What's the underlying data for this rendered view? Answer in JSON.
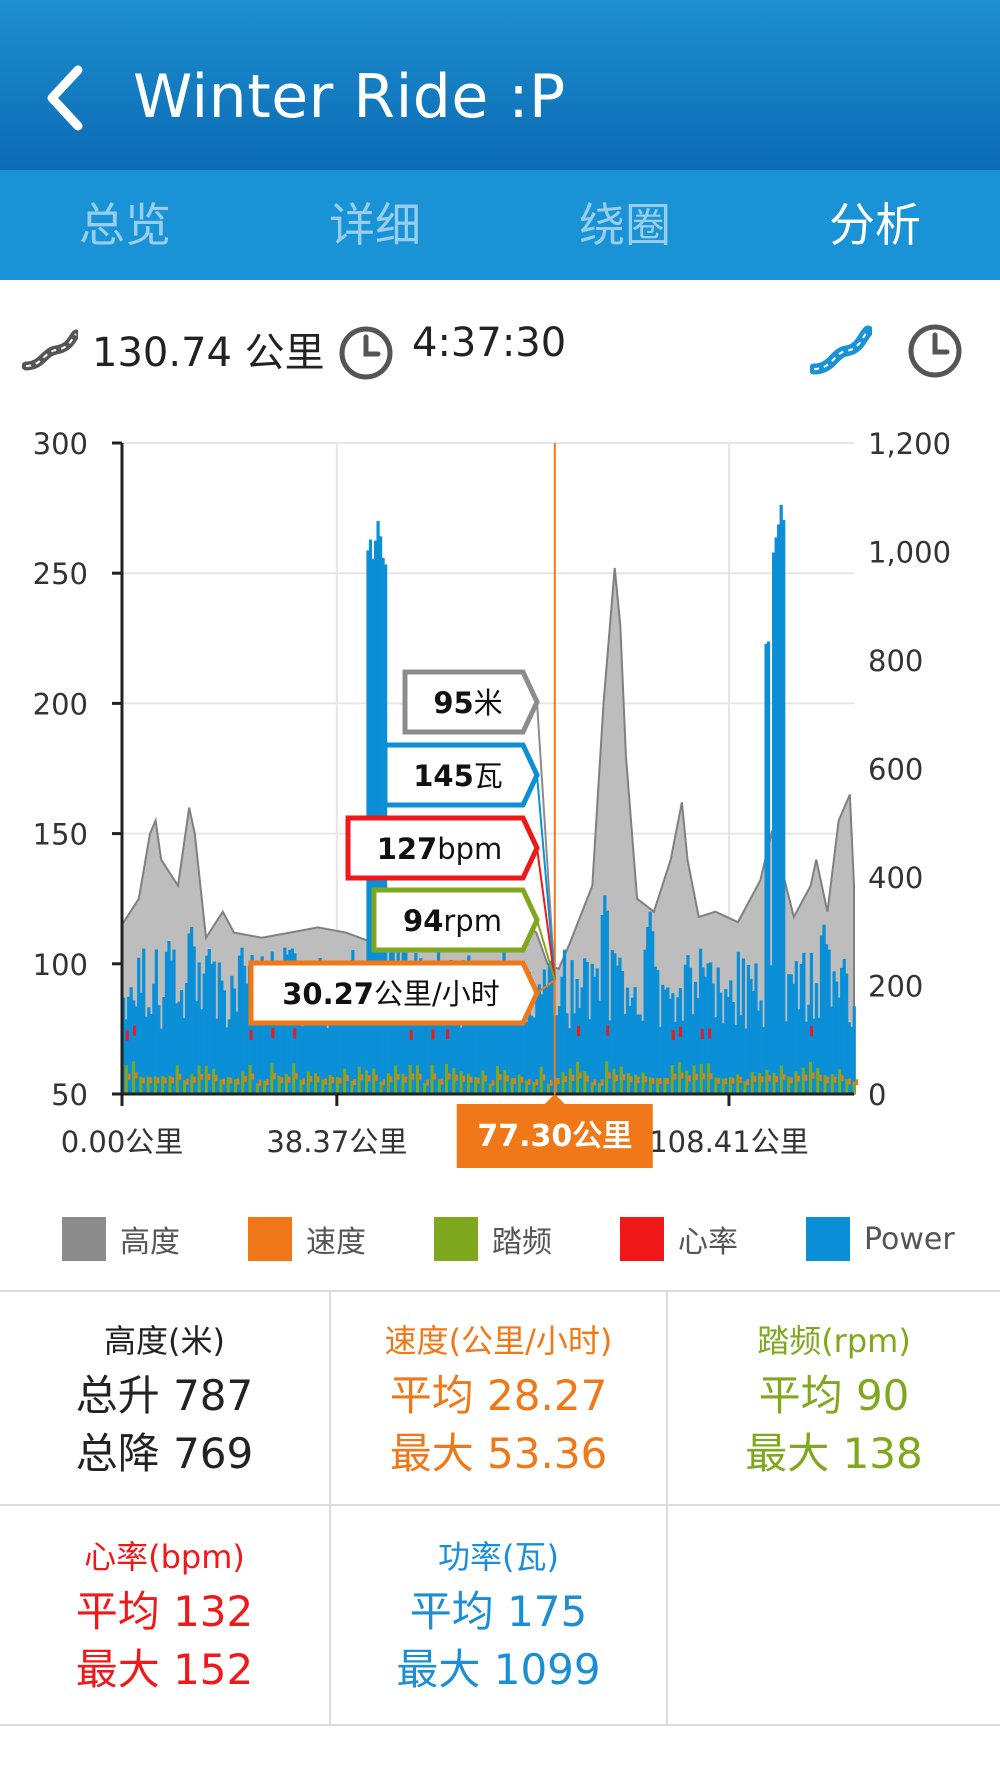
{
  "header": {
    "back_label": "‹",
    "title": "Winter Ride :P"
  },
  "tabs": [
    {
      "label": "总览",
      "active": false
    },
    {
      "label": "详细",
      "active": false
    },
    {
      "label": "绕圈",
      "active": false
    },
    {
      "label": "分析",
      "active": true
    }
  ],
  "summary": {
    "distance": "130.74 公里",
    "duration": "4:37:30"
  },
  "colors": {
    "altitude": "#8c8c8c",
    "speed": "#f07818",
    "cadence": "#7fa81e",
    "heart_rate": "#f01818",
    "power": "#0b8fd6",
    "header": "#0b6bb4"
  },
  "chart_data": {
    "type": "area",
    "xlabel": "",
    "ylabel": "",
    "xlim": [
      0,
      130.74
    ],
    "x_tick_labels": [
      "0.00公里",
      "38.37公里",
      "108.41公里"
    ],
    "x_ticks": [
      0,
      38.37,
      108.41
    ],
    "y_left": {
      "ylim": [
        50,
        300
      ],
      "ticks": [
        50,
        100,
        150,
        200,
        250,
        300
      ],
      "tick_labels": [
        "50",
        "100",
        "150",
        "200",
        "250",
        "300"
      ]
    },
    "y_right": {
      "ylim": [
        0,
        1200
      ],
      "ticks": [
        0,
        200,
        400,
        600,
        800,
        1000,
        1200
      ],
      "tick_labels": [
        "0",
        "200",
        "400",
        "600",
        "800",
        "1,000",
        "1,200"
      ]
    },
    "grid": true,
    "cursor": {
      "x": 77.3,
      "label": "77.30公里"
    },
    "tooltips": [
      {
        "series": "altitude",
        "value": "95",
        "unit": "米"
      },
      {
        "series": "power",
        "value": "145",
        "unit": "瓦"
      },
      {
        "series": "heart_rate",
        "value": "127",
        "unit": "bpm"
      },
      {
        "series": "cadence",
        "value": "94",
        "unit": "rpm"
      },
      {
        "series": "speed",
        "value": "30.27",
        "unit": "公里/小时"
      }
    ],
    "series": [
      {
        "name": "高度",
        "axis": "left",
        "x": [
          0,
          3,
          5,
          6,
          7,
          10,
          12,
          13,
          15,
          18,
          20,
          25,
          30,
          35,
          40,
          45,
          50,
          55,
          60,
          65,
          70,
          74,
          76,
          78,
          80,
          84,
          86,
          88,
          89,
          90,
          92,
          95,
          98,
          100,
          101,
          103,
          106,
          110,
          114,
          116,
          118,
          120,
          123,
          124,
          126,
          128,
          130,
          130.74
        ],
        "values": [
          115,
          125,
          150,
          155,
          140,
          130,
          160,
          150,
          110,
          120,
          112,
          110,
          112,
          114,
          112,
          108,
          110,
          112,
          110,
          112,
          118,
          112,
          100,
          98,
          108,
          130,
          200,
          252,
          230,
          180,
          125,
          120,
          140,
          162,
          140,
          118,
          120,
          116,
          132,
          150,
          135,
          118,
          130,
          140,
          120,
          155,
          165,
          130
        ]
      },
      {
        "name": "Power",
        "axis": "right",
        "peaks": [
          {
            "x": 8,
            "value": 290
          },
          {
            "x": 12,
            "value": 320
          },
          {
            "x": 16,
            "value": 260
          },
          {
            "x": 44,
            "value": 1030
          },
          {
            "x": 45.5,
            "value": 1060
          },
          {
            "x": 46.5,
            "value": 1000
          },
          {
            "x": 48,
            "value": 390
          },
          {
            "x": 86,
            "value": 370
          },
          {
            "x": 94,
            "value": 340
          },
          {
            "x": 115,
            "value": 850
          },
          {
            "x": 116.5,
            "value": 1030
          },
          {
            "x": 117.5,
            "value": 1090
          },
          {
            "x": 125,
            "value": 320
          }
        ]
      },
      {
        "name": "心率",
        "axis": "left",
        "avg": 132,
        "max": 152
      },
      {
        "name": "踏频",
        "axis": "left",
        "avg": 90,
        "max": 138
      },
      {
        "name": "速度",
        "axis": "left",
        "avg": 28.27,
        "max": 53.36
      }
    ]
  },
  "legend": [
    {
      "key": "altitude",
      "label": "高度"
    },
    {
      "key": "speed",
      "label": "速度"
    },
    {
      "key": "cadence",
      "label": "踏频"
    },
    {
      "key": "heart_rate",
      "label": "心率"
    },
    {
      "key": "power",
      "label": "Power"
    }
  ],
  "stats": [
    {
      "key": "altitude",
      "header": "高度(米)",
      "line1": "总升 787",
      "line2": "总降 769"
    },
    {
      "key": "speed",
      "header": "速度(公里/小时)",
      "line1": "平均 28.27",
      "line2": "最大 53.36"
    },
    {
      "key": "cadence",
      "header": "踏频(rpm)",
      "line1": "平均 90",
      "line2": "最大 138"
    },
    {
      "key": "heart_rate",
      "header": "心率(bpm)",
      "line1": "平均 132",
      "line2": "最大 152"
    },
    {
      "key": "power",
      "header": "功率(瓦)",
      "line1": "平均 175",
      "line2": "最大 1099"
    }
  ]
}
